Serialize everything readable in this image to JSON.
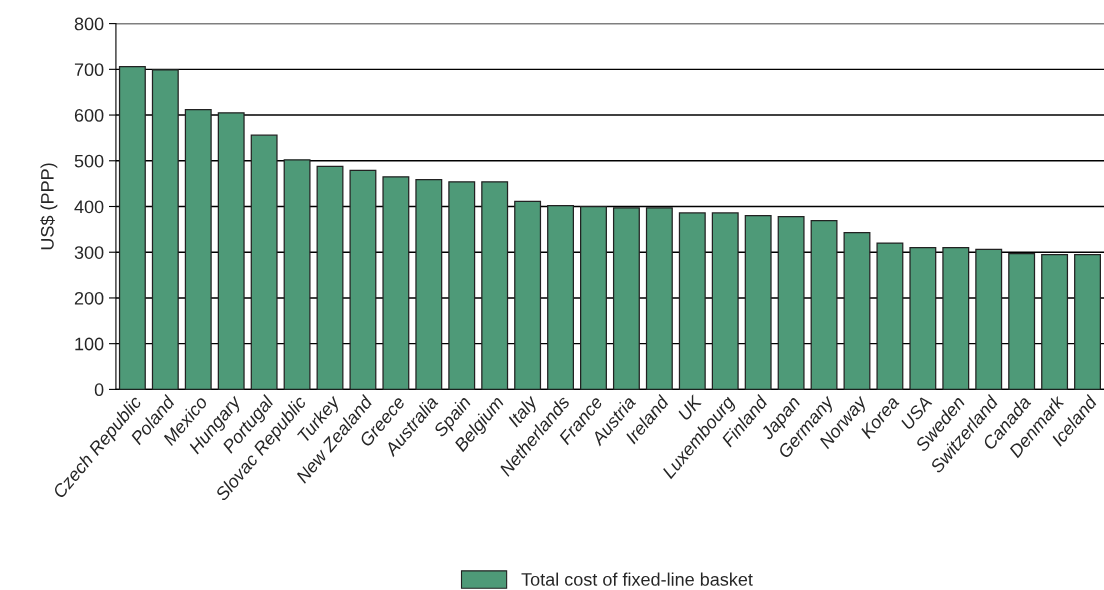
{
  "chart_data": {
    "type": "bar",
    "ylabel": "US$ (PPP)",
    "categories": [
      "Czech Republic",
      "Poland",
      "Mexico",
      "Hungary",
      "Portugal",
      "Slovac Republic",
      "Turkey",
      "New Zealand",
      "Greece",
      "Australia",
      "Spain",
      "Belgium",
      "Italy",
      "Netherlands",
      "France",
      "Austria",
      "Ireland",
      "UK",
      "Luxembourg",
      "Finland",
      "Japan",
      "Germany",
      "Norway",
      "Korea",
      "USA",
      "Sweden",
      "Switzerland",
      "Canada",
      "Denmark",
      "Iceland"
    ],
    "series": [
      {
        "name": "Total cost of fixed-line basket",
        "color": "#4e9a78",
        "values": [
          706,
          699,
          612,
          605,
          556,
          502,
          488,
          479,
          465,
          459,
          454,
          454,
          411,
          402,
          400,
          397,
          397,
          386,
          386,
          380,
          378,
          369,
          343,
          320,
          310,
          310,
          306,
          297,
          295,
          295
        ]
      }
    ],
    "ylim": [
      0,
      800
    ],
    "yticks": [
      0,
      100,
      200,
      300,
      400,
      500,
      600,
      700,
      800
    ],
    "grid": "y",
    "legend": "bottom"
  }
}
